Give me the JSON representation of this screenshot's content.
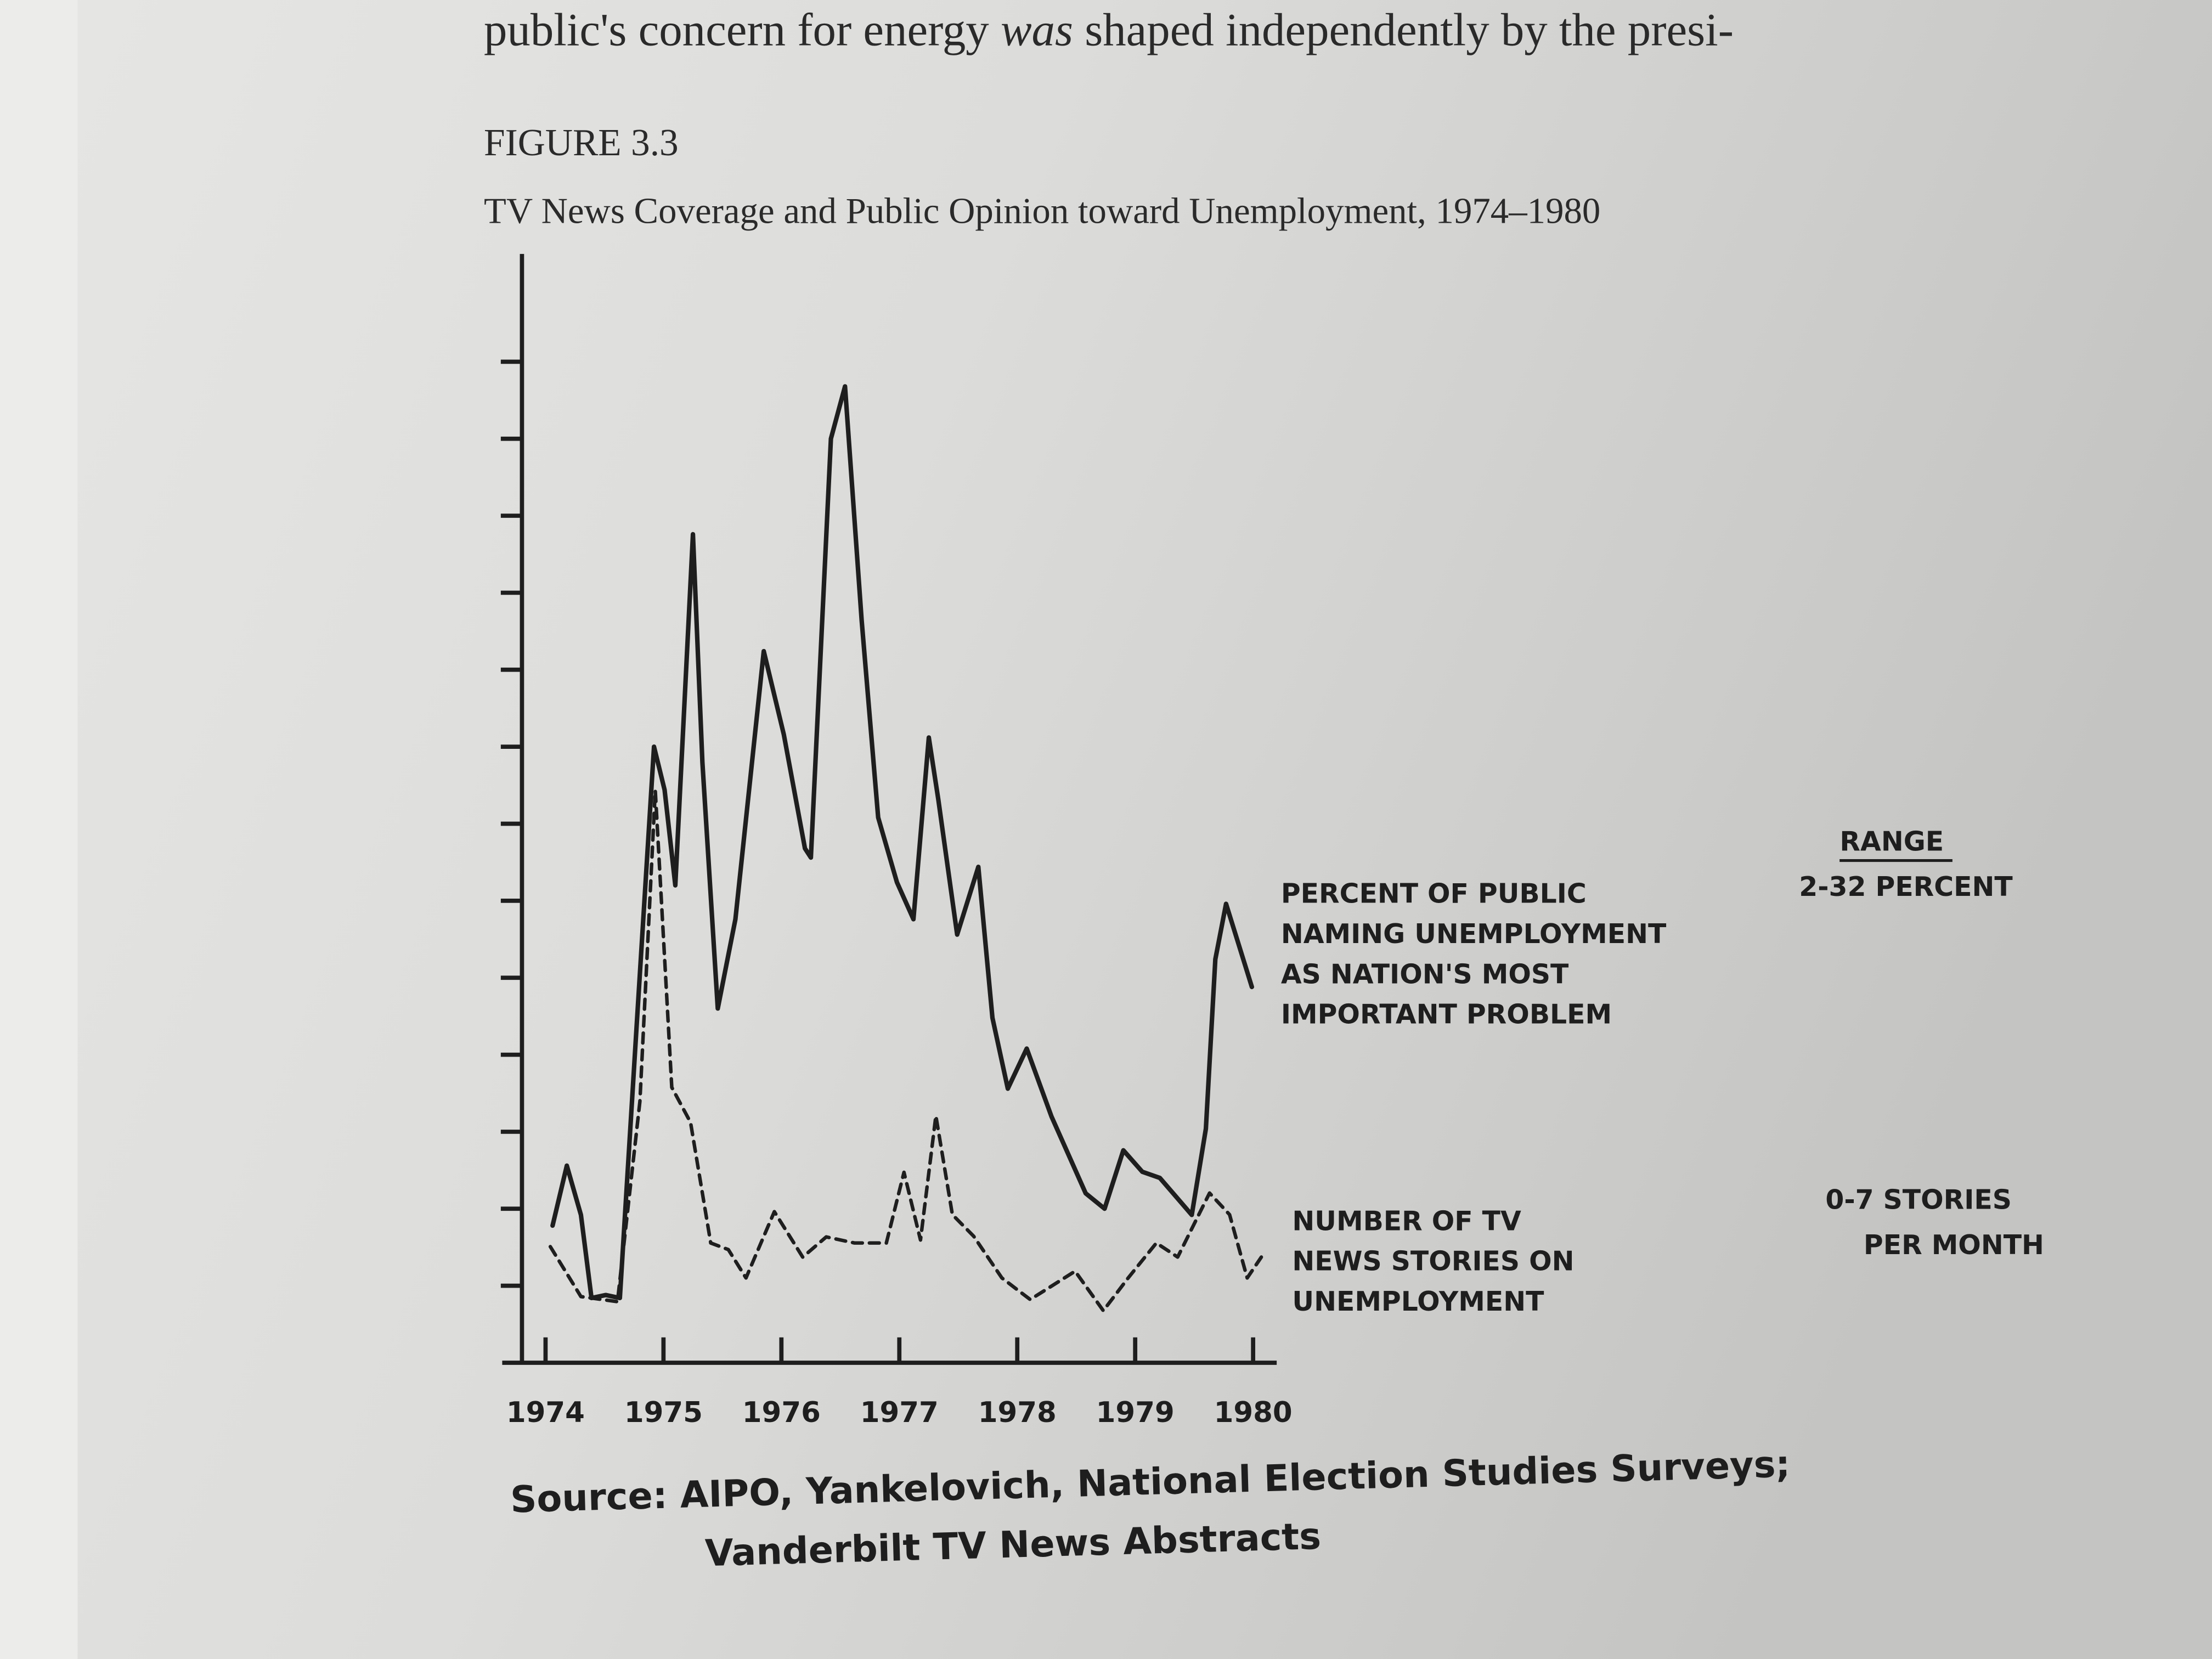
{
  "page_text": {
    "segments": [
      "public's concern for energy ",
      "was",
      " shaped independently by the presi-"
    ]
  },
  "chart_data": {
    "type": "line",
    "figure_label": "FIGURE 3.3",
    "title": "TV News Coverage and Public Opinion toward Unemployment, 1974–1980",
    "xlim": [
      1973.8,
      1980.2
    ],
    "xticks": [
      1974,
      1975,
      1976,
      1977,
      1978,
      1979,
      1980
    ],
    "ylim": [
      0,
      36
    ],
    "yticks": [
      2.5,
      5,
      7.5,
      10,
      12.5,
      15,
      17.5,
      20,
      22.5,
      25,
      27.5,
      30,
      32.5
    ],
    "y2lim": [
      -0.7,
      14.2
    ],
    "series": [
      {
        "label_lines": [
          "PERCENT OF PUBLIC",
          "NAMING UNEMPLOYMENT",
          "AS NATION'S MOST",
          "IMPORTANT PROBLEM"
        ],
        "color": "#1e1e1e",
        "line_style": "solid",
        "x": [
          1974.06,
          1974.18,
          1974.3,
          1974.39,
          1974.51,
          1974.63,
          1974.77,
          1974.92,
          1975.01,
          1975.1,
          1975.25,
          1975.33,
          1975.46,
          1975.61,
          1975.85,
          1976.02,
          1976.2,
          1976.25,
          1976.42,
          1976.54,
          1976.68,
          1976.82,
          1976.98,
          1977.12,
          1977.25,
          1977.33,
          1977.49,
          1977.67,
          1977.79,
          1977.92,
          1978.08,
          1978.29,
          1978.58,
          1978.74,
          1978.9,
          1979.06,
          1979.21,
          1979.48,
          1979.6,
          1979.68,
          1979.77,
          1979.99
        ],
        "values": [
          4.45,
          6.4,
          4.8,
          2.1,
          2.2,
          2.1,
          10.8,
          20.0,
          18.6,
          15.5,
          26.9,
          19.5,
          11.5,
          14.4,
          23.1,
          20.4,
          16.7,
          16.4,
          30.0,
          31.7,
          24.1,
          17.7,
          15.6,
          14.4,
          20.3,
          18.3,
          13.9,
          16.1,
          11.2,
          8.9,
          10.2,
          8.0,
          5.5,
          5.0,
          6.9,
          6.2,
          6.0,
          4.8,
          7.6,
          13.1,
          14.9,
          12.2
        ]
      },
      {
        "label_lines": [
          "NUMBER OF TV",
          "NEWS STORIES ON",
          "UNEMPLOYMENT"
        ],
        "color": "#1e1e1e",
        "line_style": "dashed",
        "axis": "y2",
        "x": [
          1974.04,
          1974.3,
          1974.61,
          1974.8,
          1974.93,
          1975.07,
          1975.23,
          1975.4,
          1975.55,
          1975.7,
          1975.94,
          1976.18,
          1976.38,
          1976.62,
          1976.89,
          1977.04,
          1977.18,
          1977.31,
          1977.45,
          1977.63,
          1977.87,
          1978.11,
          1978.49,
          1978.73,
          1978.94,
          1979.18,
          1979.36,
          1979.63,
          1979.8,
          1979.95,
          1980.07
        ],
        "values": [
          0.86,
          0.19,
          0.12,
          2.81,
          6.99,
          3.0,
          2.53,
          0.91,
          0.82,
          0.44,
          1.33,
          0.72,
          0.99,
          0.91,
          0.91,
          1.86,
          0.95,
          2.62,
          1.29,
          1.0,
          0.44,
          0.15,
          0.53,
          0,
          0.44,
          0.91,
          0.72,
          1.58,
          1.29,
          0.44,
          0.72
        ]
      }
    ],
    "range_labels": {
      "percent": [
        "RANGE",
        "2-32 PERCENT"
      ],
      "stories": [
        "0-7 STORIES",
        "PER MONTH"
      ]
    },
    "source_lines": [
      "Source: AIPO, Yankelovich, National Election Studies Surveys;",
      "Vanderbilt TV News Abstracts"
    ]
  }
}
